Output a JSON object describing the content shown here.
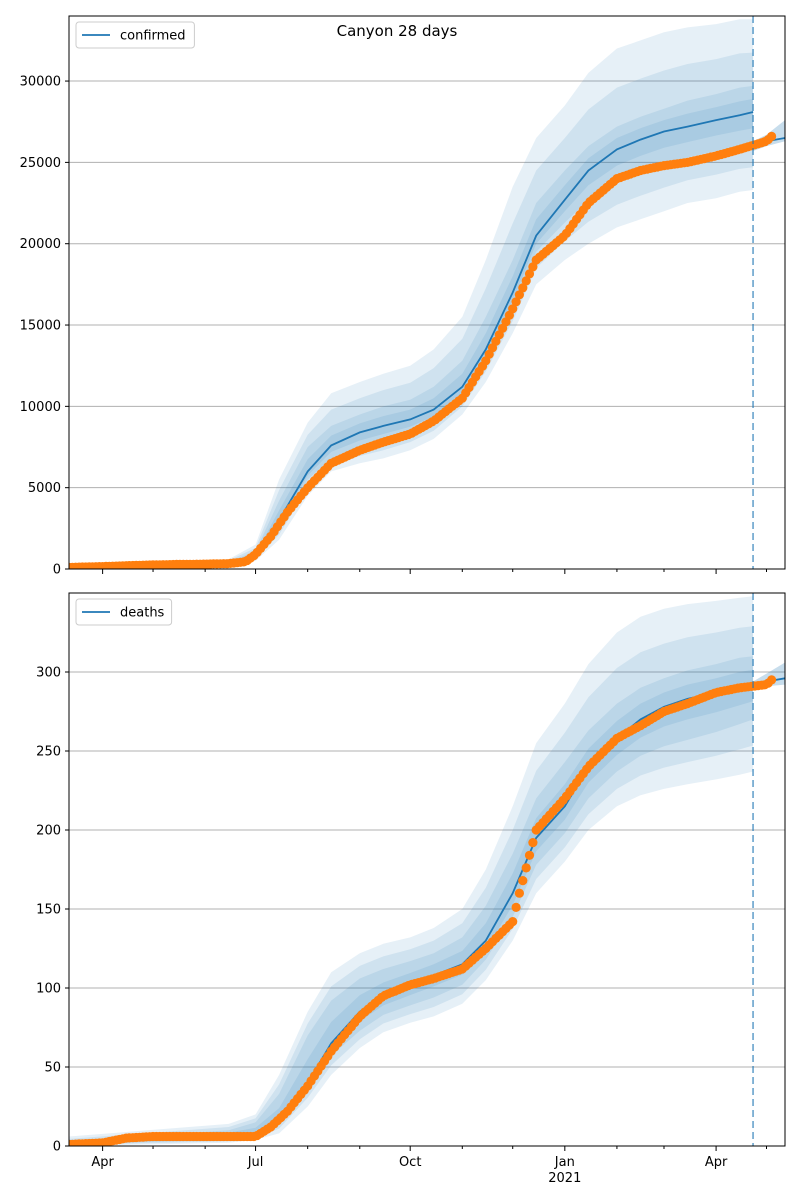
{
  "figure_title": "Canyon 28 days",
  "chart_data": [
    {
      "type": "line",
      "legend": {
        "label": "confirmed",
        "placement": "top-left"
      },
      "x_start": "2020-03-12",
      "x_end": "2021-05-12",
      "forecast_line_date": "2021-04-23",
      "ylim": [
        0,
        34000
      ],
      "yticks": [
        0,
        5000,
        10000,
        15000,
        20000,
        25000,
        30000
      ],
      "ytick_labels": [
        "0",
        "5000",
        "10000",
        "15000",
        "20000",
        "25000",
        "30000"
      ],
      "grid": "horizontal",
      "colors": {
        "line": "#1f77b4",
        "points": "#ff7f0e",
        "band": "#1f77b4"
      },
      "model_series": {
        "x": [
          "2020-03-12",
          "2020-04-01",
          "2020-05-01",
          "2020-06-01",
          "2020-06-15",
          "2020-07-01",
          "2020-07-15",
          "2020-08-01",
          "2020-08-15",
          "2020-09-01",
          "2020-09-15",
          "2020-10-01",
          "2020-10-15",
          "2020-11-01",
          "2020-11-15",
          "2020-12-01",
          "2020-12-15",
          "2021-01-01",
          "2021-01-15",
          "2021-02-01",
          "2021-02-15",
          "2021-03-01",
          "2021-03-15",
          "2021-04-01",
          "2021-04-15",
          "2021-04-23"
        ],
        "y": [
          50,
          100,
          200,
          300,
          350,
          800,
          3000,
          6000,
          7600,
          8400,
          8800,
          9200,
          9800,
          11200,
          13500,
          17000,
          20500,
          22700,
          24500,
          25800,
          26400,
          26900,
          27200,
          27600,
          27900,
          28100
        ]
      },
      "bands": {
        "x": [
          "2020-03-12",
          "2020-06-15",
          "2020-07-01",
          "2020-07-15",
          "2020-08-01",
          "2020-08-15",
          "2020-09-01",
          "2020-09-15",
          "2020-10-01",
          "2020-10-15",
          "2020-11-01",
          "2020-11-15",
          "2020-12-01",
          "2020-12-15",
          "2021-01-01",
          "2021-01-15",
          "2021-02-01",
          "2021-02-15",
          "2021-03-01",
          "2021-03-15",
          "2021-04-01",
          "2021-04-15",
          "2021-04-23"
        ],
        "outer_upper": [
          300,
          600,
          1500,
          5500,
          9000,
          10800,
          11500,
          12000,
          12500,
          13500,
          15500,
          19000,
          23500,
          26500,
          28500,
          30500,
          32000,
          32500,
          33000,
          33300,
          33500,
          33800,
          33800
        ],
        "outer_lower": [
          0,
          200,
          500,
          1800,
          4500,
          6000,
          6500,
          6800,
          7300,
          8000,
          9500,
          11500,
          14500,
          17500,
          19000,
          20000,
          21000,
          21500,
          22000,
          22500,
          22800,
          23200,
          23300
        ],
        "inner_upper": [
          150,
          450,
          1100,
          4200,
          7500,
          8800,
          9500,
          10000,
          10400,
          11200,
          12800,
          15500,
          19000,
          22500,
          24500,
          26000,
          27200,
          27800,
          28300,
          28800,
          29200,
          29600,
          29700
        ],
        "inner_lower": [
          20,
          300,
          700,
          2400,
          5500,
          6800,
          7400,
          7800,
          8300,
          9000,
          10500,
          12800,
          16000,
          19500,
          21300,
          22700,
          23800,
          24400,
          24900,
          25300,
          25700,
          26000,
          26100
        ]
      },
      "observed": {
        "x": [
          "2020-03-12",
          "2020-04-01",
          "2020-04-15",
          "2020-05-01",
          "2020-05-15",
          "2020-06-01",
          "2020-06-15",
          "2020-06-25",
          "2020-07-01",
          "2020-07-10",
          "2020-07-20",
          "2020-08-01",
          "2020-08-15",
          "2020-09-01",
          "2020-09-15",
          "2020-10-01",
          "2020-10-15",
          "2020-11-01",
          "2020-11-15",
          "2020-12-01",
          "2020-12-15",
          "2021-01-01",
          "2021-01-15",
          "2021-02-01",
          "2021-02-15",
          "2021-03-01",
          "2021-03-15",
          "2021-04-01",
          "2021-04-15",
          "2021-05-01",
          "2021-05-05"
        ],
        "y": [
          100,
          150,
          200,
          250,
          280,
          300,
          330,
          450,
          900,
          2000,
          3500,
          5000,
          6500,
          7300,
          7800,
          8300,
          9100,
          10500,
          12800,
          16000,
          19000,
          20500,
          22500,
          24000,
          24500,
          24800,
          25000,
          25400,
          25800,
          26300,
          26700
        ]
      },
      "continuation": {
        "x": [
          "2021-04-23",
          "2021-05-01",
          "2021-05-12"
        ],
        "y": [
          26000,
          26300,
          26500
        ],
        "upper": [
          26300,
          26700,
          27600
        ],
        "lower": [
          25700,
          26000,
          26300
        ]
      }
    },
    {
      "type": "line",
      "legend": {
        "label": "deaths",
        "placement": "top-left"
      },
      "x_start": "2020-03-12",
      "x_end": "2021-05-12",
      "forecast_line_date": "2021-04-23",
      "ylim": [
        0,
        350
      ],
      "yticks": [
        0,
        50,
        100,
        150,
        200,
        250,
        300
      ],
      "ytick_labels": [
        "0",
        "50",
        "100",
        "150",
        "200",
        "250",
        "300"
      ],
      "xtick_dates": [
        "2020-04-01",
        "2020-07-01",
        "2020-10-01",
        "2021-01-01",
        "2021-04-01"
      ],
      "xtick_labels": [
        "Apr",
        "Jul",
        "Oct",
        "Jan",
        "Apr"
      ],
      "year_label": "2021",
      "grid": "horizontal",
      "colors": {
        "line": "#1f77b4",
        "points": "#ff7f0e",
        "band": "#1f77b4"
      },
      "model_series": {
        "x": [
          "2020-03-12",
          "2020-04-01",
          "2020-05-01",
          "2020-06-01",
          "2020-07-01",
          "2020-07-15",
          "2020-08-01",
          "2020-08-15",
          "2020-09-01",
          "2020-09-15",
          "2020-10-01",
          "2020-10-15",
          "2020-11-01",
          "2020-11-15",
          "2020-12-01",
          "2020-12-15",
          "2021-01-01",
          "2021-01-15",
          "2021-02-01",
          "2021-02-15",
          "2021-03-01",
          "2021-03-15",
          "2021-04-01",
          "2021-04-15",
          "2021-04-23"
        ],
        "y": [
          2,
          3,
          5,
          6,
          8,
          15,
          40,
          65,
          85,
          95,
          102,
          108,
          115,
          130,
          160,
          195,
          215,
          240,
          258,
          270,
          278,
          283,
          287,
          291,
          293
        ]
      },
      "bands": {
        "x": [
          "2020-03-12",
          "2020-06-15",
          "2020-07-01",
          "2020-07-15",
          "2020-08-01",
          "2020-08-15",
          "2020-09-01",
          "2020-09-15",
          "2020-10-01",
          "2020-10-15",
          "2020-11-01",
          "2020-11-15",
          "2020-12-01",
          "2020-12-15",
          "2021-01-01",
          "2021-01-15",
          "2021-02-01",
          "2021-02-15",
          "2021-03-01",
          "2021-03-15",
          "2021-04-01",
          "2021-04-15",
          "2021-04-23"
        ],
        "outer_upper": [
          6,
          14,
          20,
          45,
          85,
          110,
          122,
          128,
          132,
          138,
          150,
          175,
          215,
          255,
          280,
          305,
          325,
          335,
          340,
          343,
          345,
          347,
          348
        ],
        "outer_lower": [
          0,
          2,
          4,
          8,
          25,
          45,
          62,
          72,
          78,
          82,
          90,
          105,
          130,
          160,
          180,
          200,
          215,
          222,
          226,
          229,
          232,
          235,
          237
        ],
        "inner_upper": [
          3,
          10,
          15,
          33,
          70,
          92,
          106,
          112,
          117,
          122,
          132,
          152,
          185,
          220,
          243,
          263,
          280,
          290,
          296,
          301,
          305,
          309,
          310
        ],
        "inner_lower": [
          1,
          4,
          6,
          14,
          36,
          57,
          73,
          83,
          89,
          94,
          102,
          118,
          145,
          178,
          198,
          220,
          237,
          247,
          253,
          257,
          262,
          267,
          270
        ]
      },
      "observed": {
        "x": [
          "2020-03-12",
          "2020-04-01",
          "2020-04-15",
          "2020-05-01",
          "2020-05-15",
          "2020-06-01",
          "2020-06-15",
          "2020-07-01",
          "2020-07-10",
          "2020-07-20",
          "2020-08-01",
          "2020-08-15",
          "2020-09-01",
          "2020-09-15",
          "2020-10-01",
          "2020-10-15",
          "2020-11-01",
          "2020-11-15",
          "2020-12-01",
          "2020-12-05",
          "2020-12-10",
          "2020-12-15",
          "2021-01-01",
          "2021-01-15",
          "2021-02-01",
          "2021-02-15",
          "2021-03-01",
          "2021-03-15",
          "2021-04-01",
          "2021-04-15",
          "2021-05-01",
          "2021-05-05"
        ],
        "y": [
          1,
          2,
          5,
          6,
          6,
          6,
          6,
          6,
          12,
          22,
          38,
          60,
          82,
          95,
          102,
          106,
          112,
          125,
          142,
          160,
          180,
          200,
          220,
          240,
          258,
          266,
          275,
          280,
          287,
          290,
          292,
          296
        ]
      },
      "continuation": {
        "x": [
          "2021-04-23",
          "2021-05-01",
          "2021-05-12"
        ],
        "y": [
          292,
          294,
          296
        ],
        "upper": [
          294,
          299,
          306
        ],
        "lower": [
          290,
          291,
          292
        ]
      }
    }
  ]
}
